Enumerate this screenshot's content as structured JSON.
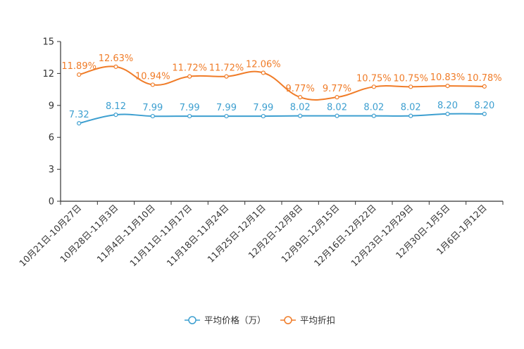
{
  "chart_data": {
    "type": "line",
    "title": "",
    "xlabel": "",
    "ylabel": "",
    "ylim": [
      0,
      15
    ],
    "yticks": [
      "0",
      "3",
      "6",
      "9",
      "12",
      "15"
    ],
    "grid": false,
    "legend_position": "bottom-center",
    "categories": [
      "10月21日-10月27日",
      "10月28日-11月3日",
      "11月4日-11月10日",
      "11月11日-11月17日",
      "11月18日-11月24日",
      "11月25日-12月1日",
      "12月2日-12月8日",
      "12月9日-12月15日",
      "12月16日-12月22日",
      "12月23日-12月29日",
      "12月30日-1月5日",
      "1月6日-1月12日"
    ],
    "series": [
      {
        "name": "平均价格（万）",
        "color": "#3d9fd0",
        "values": [
          7.32,
          8.12,
          7.99,
          7.99,
          7.99,
          7.99,
          8.02,
          8.02,
          8.02,
          8.02,
          8.2,
          8.2
        ],
        "labels": [
          "7.32",
          "8.12",
          "7.99",
          "7.99",
          "7.99",
          "7.99",
          "8.02",
          "8.02",
          "8.02",
          "8.02",
          "8.20",
          "8.20"
        ]
      },
      {
        "name": "平均折扣",
        "color": "#f07c28",
        "values": [
          11.89,
          12.63,
          10.94,
          11.72,
          11.72,
          12.06,
          9.77,
          9.77,
          10.75,
          10.75,
          10.83,
          10.78
        ],
        "labels": [
          "11.89%",
          "12.63%",
          "10.94%",
          "11.72%",
          "11.72%",
          "12.06%",
          "9.77%",
          "9.77%",
          "10.75%",
          "10.75%",
          "10.83%",
          "10.78%"
        ]
      }
    ]
  }
}
